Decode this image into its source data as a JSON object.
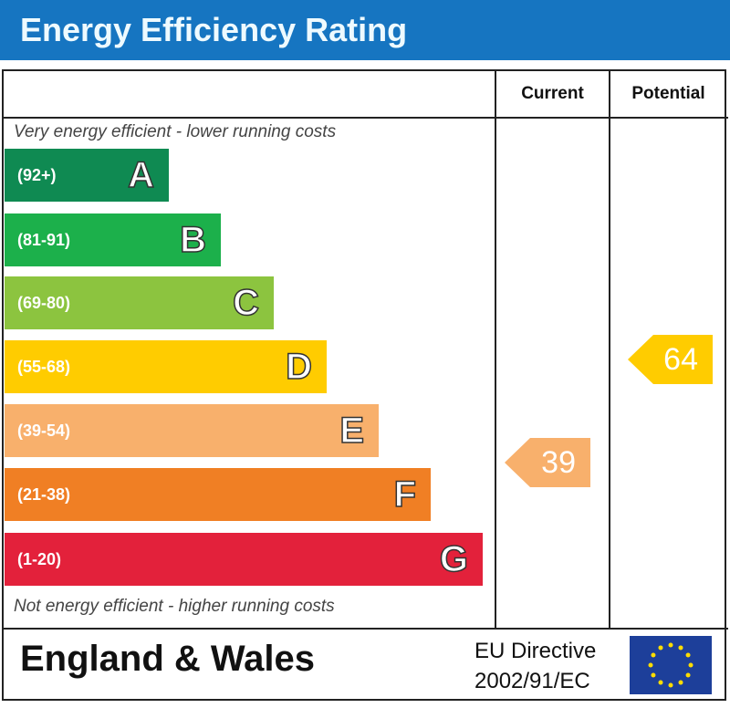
{
  "title": "Energy Efficiency Rating",
  "columns": {
    "current": "Current",
    "potential": "Potential"
  },
  "top_note": "Very energy efficient - lower running costs",
  "bottom_note": "Not energy efficient - higher running costs",
  "footer": {
    "region": "England & Wales",
    "directive_line1": "EU Directive",
    "directive_line2": "2002/91/EC",
    "flag_icon": "eu-flag-icon"
  },
  "chart_data": {
    "type": "bar",
    "title": "Energy Efficiency Rating",
    "bands": [
      {
        "letter": "A",
        "range": "(92+)",
        "color": "#0f8a52"
      },
      {
        "letter": "B",
        "range": "(81-91)",
        "color": "#1cb04b"
      },
      {
        "letter": "C",
        "range": "(69-80)",
        "color": "#8cc43f"
      },
      {
        "letter": "D",
        "range": "(55-68)",
        "color": "#ffcc00"
      },
      {
        "letter": "E",
        "range": "(39-54)",
        "color": "#f8b06c"
      },
      {
        "letter": "F",
        "range": "(21-38)",
        "color": "#f07f24"
      },
      {
        "letter": "G",
        "range": "(1-20)",
        "color": "#e3213b"
      }
    ],
    "current": {
      "value": "39",
      "band": "E",
      "color": "#f8b06c"
    },
    "potential": {
      "value": "64",
      "band": "D",
      "color": "#ffcc00"
    }
  }
}
